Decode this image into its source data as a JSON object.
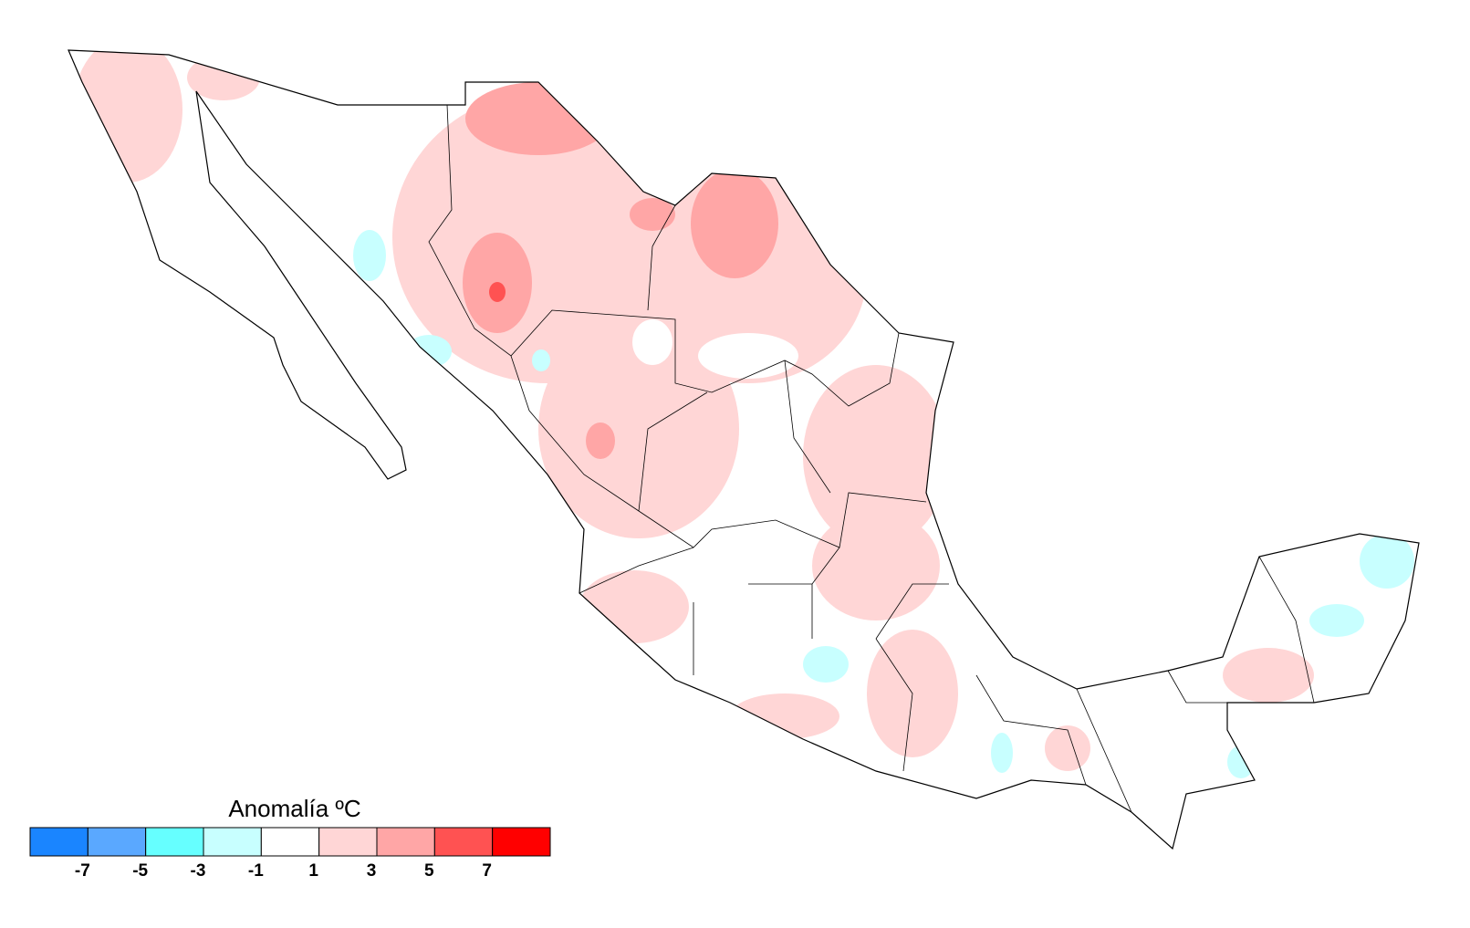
{
  "legend": {
    "title": "Anomalía ºC",
    "ticks": [
      -7,
      -5,
      -3,
      -1,
      1,
      3,
      5,
      7
    ],
    "colors": [
      "#1a85ff",
      "#5aa8ff",
      "#66ffff",
      "#c8ffff",
      "#ffffff",
      "#ffd6d6",
      "#ffa6a6",
      "#ff5252",
      "#ff0000"
    ]
  }
}
